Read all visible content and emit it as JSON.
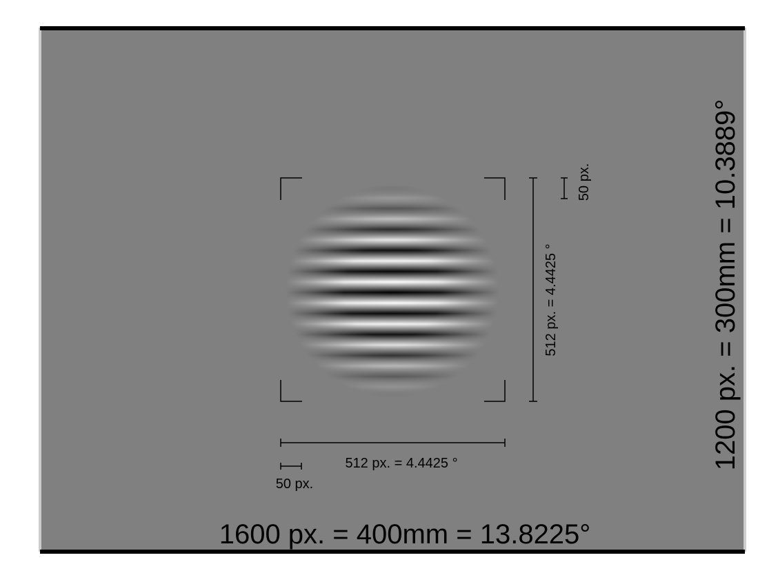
{
  "colors": {
    "screen_background": "#808080",
    "border": "#000000",
    "edge_shadow": "#cccccc",
    "grating_light": "#ffffff",
    "grating_dark": "#000000"
  },
  "screen": {
    "width_label": "1600 px. = 400mm = 13.8225°",
    "height_label": "1200 px. = 300mm = 10.3889°"
  },
  "stimulus": {
    "type": "horizontal sinusoidal grating with gaussian envelope",
    "width_label": "512 px. = 4.4425 °",
    "height_label": "512 px. = 4.4425 °",
    "scale_horizontal_label": "50 px.",
    "scale_vertical_label": "50 px."
  }
}
